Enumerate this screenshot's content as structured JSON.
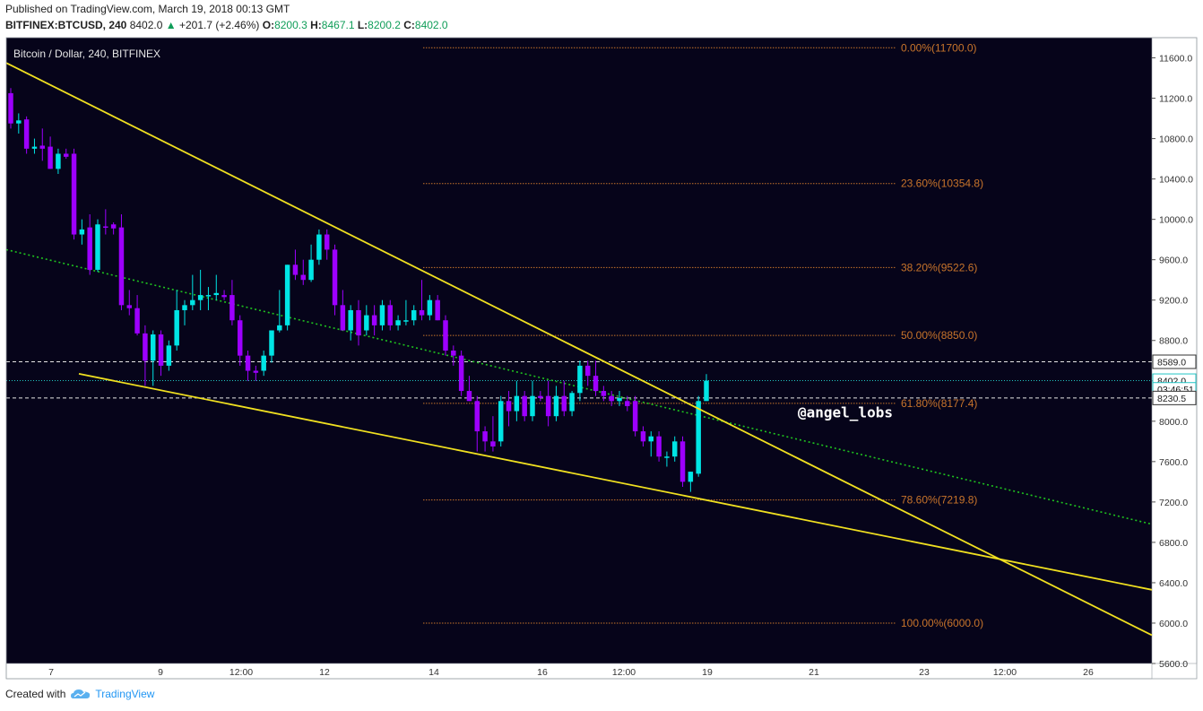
{
  "header": {
    "published": "Published on TradingView.com, March 19, 2018 00:13 GMT",
    "symbol": "BITFINEX:BTCUSD, 240",
    "last": "8402.0",
    "change_arrow": "▲",
    "change": "+201.7 (+2.46%)",
    "o_label": "O:",
    "o": "8200.3",
    "h_label": "H:",
    "h": "8467.1",
    "l_label": "L:",
    "l": "8200.2",
    "c_label": "C:",
    "c": "8402.0"
  },
  "footer": {
    "created_with": "Created with",
    "brand": "TradingView",
    "brand_icon": "cloud-icon"
  },
  "chart_data": {
    "type": "candlestick",
    "title": "Bitcoin / Dollar, 240, BITFINEX",
    "background": "#06041a",
    "colors": {
      "up": "#00e5e5",
      "down": "#9d00ff",
      "trendline": "#f0e020",
      "fib": "#c8742b",
      "ma": "#1fc41f"
    },
    "ylim": [
      5600,
      11700
    ],
    "y_ticks": [
      "11600.0",
      "11200.0",
      "10800.0",
      "10400.0",
      "10000.0",
      "9600.0",
      "9200.0",
      "8800.0",
      "8400.0",
      "8000.0",
      "7600.0",
      "7200.0",
      "6800.0",
      "6400.0",
      "6000.0",
      "5600.0"
    ],
    "x_ticks": [
      "7",
      "9",
      "12:00",
      "12",
      "14",
      "16",
      "12:00",
      "19",
      "21",
      "23",
      "12:00",
      "26"
    ],
    "price_labels": [
      {
        "text": "8589.0",
        "value": 8589.0,
        "style": "dashed"
      },
      {
        "text": "8402.0",
        "value": 8402.0,
        "style": "last"
      },
      {
        "text": "03:46:51",
        "value": 8316,
        "style": "countdown"
      },
      {
        "text": "8230.5",
        "value": 8230.5,
        "style": "dashed"
      }
    ],
    "fib_levels": [
      {
        "label": "0.00%(11700.0)",
        "value": 11700.0
      },
      {
        "label": "23.60%(10354.8)",
        "value": 10354.8
      },
      {
        "label": "38.20%(9522.6)",
        "value": 9522.6
      },
      {
        "label": "50.00%(8850.0)",
        "value": 8850.0
      },
      {
        "label": "61.80%(8177.4)",
        "value": 8177.4
      },
      {
        "label": "78.60%(7219.8)",
        "value": 7219.8
      },
      {
        "label": "100.00%(6000.0)",
        "value": 6000.0
      }
    ],
    "annotation": "@angel_lobs",
    "candles": [
      {
        "o": 11250,
        "h": 11300,
        "l": 10900,
        "c": 10950
      },
      {
        "o": 10950,
        "h": 11050,
        "l": 10850,
        "c": 10980
      },
      {
        "o": 10990,
        "h": 11020,
        "l": 10650,
        "c": 10700
      },
      {
        "o": 10700,
        "h": 10800,
        "l": 10650,
        "c": 10720
      },
      {
        "o": 10730,
        "h": 10900,
        "l": 10580,
        "c": 10700
      },
      {
        "o": 10720,
        "h": 10820,
        "l": 10500,
        "c": 10500
      },
      {
        "o": 10500,
        "h": 10700,
        "l": 10450,
        "c": 10650
      },
      {
        "o": 10650,
        "h": 10700,
        "l": 10600,
        "c": 10620
      },
      {
        "o": 10650,
        "h": 10700,
        "l": 9800,
        "c": 9850
      },
      {
        "o": 9850,
        "h": 10000,
        "l": 9750,
        "c": 9900
      },
      {
        "o": 9920,
        "h": 10050,
        "l": 9450,
        "c": 9500
      },
      {
        "o": 9500,
        "h": 10000,
        "l": 9480,
        "c": 9950
      },
      {
        "o": 9930,
        "h": 10100,
        "l": 9850,
        "c": 9920
      },
      {
        "o": 9950,
        "h": 9970,
        "l": 9850,
        "c": 9910
      },
      {
        "o": 9920,
        "h": 10050,
        "l": 9100,
        "c": 9150
      },
      {
        "o": 9150,
        "h": 9300,
        "l": 9050,
        "c": 9120
      },
      {
        "o": 9120,
        "h": 9250,
        "l": 8850,
        "c": 8870
      },
      {
        "o": 8870,
        "h": 8950,
        "l": 8350,
        "c": 8600
      },
      {
        "o": 8600,
        "h": 8900,
        "l": 8350,
        "c": 8860
      },
      {
        "o": 8860,
        "h": 8900,
        "l": 8450,
        "c": 8550
      },
      {
        "o": 8550,
        "h": 8800,
        "l": 8500,
        "c": 8750
      },
      {
        "o": 8750,
        "h": 9300,
        "l": 8700,
        "c": 9100
      },
      {
        "o": 9100,
        "h": 9200,
        "l": 8950,
        "c": 9150
      },
      {
        "o": 9150,
        "h": 9450,
        "l": 9100,
        "c": 9200
      },
      {
        "o": 9200,
        "h": 9500,
        "l": 9100,
        "c": 9250
      },
      {
        "o": 9240,
        "h": 9330,
        "l": 9100,
        "c": 9250
      },
      {
        "o": 9250,
        "h": 9450,
        "l": 9200,
        "c": 9270
      },
      {
        "o": 9250,
        "h": 9300,
        "l": 9200,
        "c": 9230
      },
      {
        "o": 9250,
        "h": 9400,
        "l": 8950,
        "c": 9000
      },
      {
        "o": 9000,
        "h": 9050,
        "l": 8550,
        "c": 8650
      },
      {
        "o": 8650,
        "h": 8700,
        "l": 8400,
        "c": 8500
      },
      {
        "o": 8500,
        "h": 8550,
        "l": 8400,
        "c": 8480
      },
      {
        "o": 8500,
        "h": 8700,
        "l": 8450,
        "c": 8650
      },
      {
        "o": 8650,
        "h": 8900,
        "l": 8580,
        "c": 8900
      },
      {
        "o": 8900,
        "h": 9300,
        "l": 8880,
        "c": 8950
      },
      {
        "o": 8950,
        "h": 9550,
        "l": 8900,
        "c": 9550
      },
      {
        "o": 9550,
        "h": 9700,
        "l": 9400,
        "c": 9450
      },
      {
        "o": 9450,
        "h": 9600,
        "l": 9350,
        "c": 9400
      },
      {
        "o": 9400,
        "h": 9750,
        "l": 9380,
        "c": 9600
      },
      {
        "o": 9600,
        "h": 9900,
        "l": 9550,
        "c": 9850
      },
      {
        "o": 9850,
        "h": 9900,
        "l": 9600,
        "c": 9700
      },
      {
        "o": 9700,
        "h": 9750,
        "l": 9050,
        "c": 9150
      },
      {
        "o": 9150,
        "h": 9300,
        "l": 8950,
        "c": 8900
      },
      {
        "o": 8900,
        "h": 9150,
        "l": 8800,
        "c": 9100
      },
      {
        "o": 9100,
        "h": 9200,
        "l": 8750,
        "c": 8850
      },
      {
        "o": 8900,
        "h": 9150,
        "l": 8850,
        "c": 9050
      },
      {
        "o": 9050,
        "h": 9150,
        "l": 8850,
        "c": 8950
      },
      {
        "o": 8950,
        "h": 9200,
        "l": 8900,
        "c": 9150
      },
      {
        "o": 9150,
        "h": 9200,
        "l": 8900,
        "c": 8950
      },
      {
        "o": 8950,
        "h": 9050,
        "l": 8900,
        "c": 9000
      },
      {
        "o": 9000,
        "h": 9200,
        "l": 8950,
        "c": 9000
      },
      {
        "o": 9000,
        "h": 9150,
        "l": 8950,
        "c": 9100
      },
      {
        "o": 9100,
        "h": 9400,
        "l": 9000,
        "c": 9050
      },
      {
        "o": 9050,
        "h": 9250,
        "l": 9000,
        "c": 9200
      },
      {
        "o": 9200,
        "h": 9250,
        "l": 9000,
        "c": 9000
      },
      {
        "o": 9000,
        "h": 9050,
        "l": 8650,
        "c": 8700
      },
      {
        "o": 8700,
        "h": 8750,
        "l": 8550,
        "c": 8650
      },
      {
        "o": 8650,
        "h": 8700,
        "l": 8250,
        "c": 8300
      },
      {
        "o": 8300,
        "h": 8450,
        "l": 8200,
        "c": 8200
      },
      {
        "o": 8200,
        "h": 8250,
        "l": 7700,
        "c": 7900
      },
      {
        "o": 7900,
        "h": 7950,
        "l": 7700,
        "c": 7800
      },
      {
        "o": 7800,
        "h": 8050,
        "l": 7700,
        "c": 7750
      },
      {
        "o": 7800,
        "h": 8250,
        "l": 7750,
        "c": 8200
      },
      {
        "o": 8200,
        "h": 8300,
        "l": 7950,
        "c": 8100
      },
      {
        "o": 8100,
        "h": 8400,
        "l": 8000,
        "c": 8250
      },
      {
        "o": 8250,
        "h": 8300,
        "l": 8000,
        "c": 8050
      },
      {
        "o": 8050,
        "h": 8400,
        "l": 8000,
        "c": 8250
      },
      {
        "o": 8250,
        "h": 8300,
        "l": 8200,
        "c": 8230
      },
      {
        "o": 8250,
        "h": 8400,
        "l": 7950,
        "c": 8050
      },
      {
        "o": 8050,
        "h": 8350,
        "l": 8000,
        "c": 8250
      },
      {
        "o": 8250,
        "h": 8400,
        "l": 8050,
        "c": 8100
      },
      {
        "o": 8100,
        "h": 8300,
        "l": 8050,
        "c": 8280
      },
      {
        "o": 8280,
        "h": 8600,
        "l": 8200,
        "c": 8550
      },
      {
        "o": 8550,
        "h": 8600,
        "l": 8350,
        "c": 8450
      },
      {
        "o": 8450,
        "h": 8600,
        "l": 8250,
        "c": 8300
      },
      {
        "o": 8300,
        "h": 8350,
        "l": 8200,
        "c": 8250
      },
      {
        "o": 8250,
        "h": 8300,
        "l": 8150,
        "c": 8200
      },
      {
        "o": 8200,
        "h": 8300,
        "l": 8150,
        "c": 8230
      },
      {
        "o": 8200,
        "h": 8250,
        "l": 8100,
        "c": 8150
      },
      {
        "o": 8200,
        "h": 8250,
        "l": 7850,
        "c": 7900
      },
      {
        "o": 7900,
        "h": 7950,
        "l": 7750,
        "c": 7800
      },
      {
        "o": 7800,
        "h": 7900,
        "l": 7650,
        "c": 7850
      },
      {
        "o": 7850,
        "h": 7900,
        "l": 7600,
        "c": 7650
      },
      {
        "o": 7650,
        "h": 7700,
        "l": 7550,
        "c": 7650
      },
      {
        "o": 7650,
        "h": 7850,
        "l": 7600,
        "c": 7800
      },
      {
        "o": 7800,
        "h": 7850,
        "l": 7350,
        "c": 7400
      },
      {
        "o": 7400,
        "h": 7500,
        "l": 7300,
        "c": 7500
      },
      {
        "o": 7480,
        "h": 8250,
        "l": 7450,
        "c": 8200
      },
      {
        "o": 8200,
        "h": 8467,
        "l": 8200,
        "c": 8402
      }
    ]
  }
}
